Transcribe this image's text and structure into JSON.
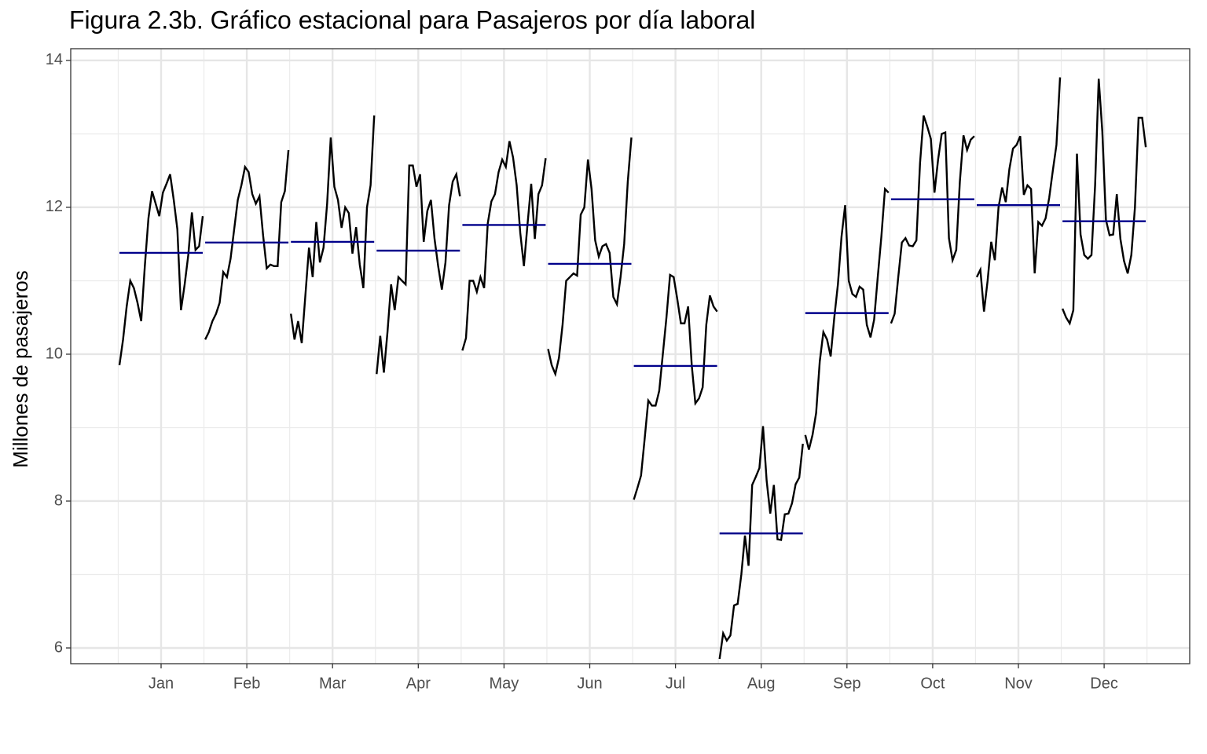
{
  "chart_data": {
    "type": "seasonal_subseries",
    "title": "Figura 2.3b. Gráfico estacional para Pasajeros por día laboral",
    "y_label": "Millones de pasajeros",
    "categories": [
      "Jan",
      "Feb",
      "Mar",
      "Apr",
      "May",
      "Jun",
      "Jul",
      "Aug",
      "Sep",
      "Oct",
      "Nov",
      "Dec"
    ],
    "subseries": [
      [
        9.85,
        10.2,
        10.65,
        11.0,
        10.9,
        10.7,
        10.45,
        11.2,
        11.85,
        12.22,
        12.05,
        11.88,
        12.2,
        12.32,
        12.45,
        12.1,
        11.7,
        10.6,
        10.95,
        11.35,
        11.93,
        11.42,
        11.47,
        11.88
      ],
      [
        10.2,
        10.3,
        10.45,
        10.55,
        10.7,
        11.12,
        11.05,
        11.3,
        11.7,
        12.1,
        12.3,
        12.55,
        12.48,
        12.18,
        12.05,
        12.15,
        11.62,
        11.17,
        11.22,
        11.2,
        11.2,
        12.07,
        12.22,
        12.78
      ],
      [
        10.55,
        10.2,
        10.45,
        10.15,
        10.8,
        11.45,
        11.05,
        11.8,
        11.25,
        11.45,
        12.05,
        12.95,
        12.28,
        12.1,
        11.72,
        12.0,
        11.92,
        11.37,
        11.73,
        11.22,
        10.9,
        12.0,
        12.3,
        13.25
      ],
      [
        9.73,
        10.25,
        9.75,
        10.3,
        10.95,
        10.6,
        11.05,
        11.0,
        10.95,
        12.57,
        12.57,
        12.28,
        12.45,
        11.53,
        11.95,
        12.1,
        11.57,
        11.2,
        10.88,
        11.25,
        12.03,
        12.35,
        12.45,
        12.15
      ],
      [
        10.05,
        10.22,
        11.0,
        11.0,
        10.85,
        11.05,
        10.9,
        11.78,
        12.08,
        12.18,
        12.48,
        12.65,
        12.55,
        12.9,
        12.68,
        12.3,
        11.65,
        11.2,
        11.78,
        12.32,
        11.57,
        12.18,
        12.3,
        12.67
      ],
      [
        10.07,
        9.85,
        9.73,
        9.95,
        10.4,
        11.0,
        11.05,
        11.1,
        11.07,
        11.9,
        12.0,
        12.65,
        12.25,
        11.55,
        11.33,
        11.47,
        11.5,
        11.38,
        10.78,
        10.68,
        11.05,
        11.5,
        12.35,
        12.95
      ],
      [
        8.02,
        8.18,
        8.35,
        8.85,
        9.37,
        9.3,
        9.3,
        9.5,
        10.0,
        10.5,
        11.08,
        11.05,
        10.75,
        10.42,
        10.42,
        10.65,
        9.85,
        9.33,
        9.4,
        9.55,
        10.4,
        10.8,
        10.65,
        10.58
      ],
      [
        5.85,
        6.2,
        6.1,
        6.17,
        6.58,
        6.6,
        7.0,
        7.53,
        7.12,
        8.22,
        8.33,
        8.45,
        9.02,
        8.28,
        7.83,
        8.22,
        7.48,
        7.47,
        7.82,
        7.83,
        7.97,
        8.23,
        8.32,
        8.78
      ],
      [
        8.9,
        8.7,
        8.9,
        9.2,
        9.9,
        10.3,
        10.2,
        9.97,
        10.5,
        10.95,
        11.6,
        12.03,
        11.0,
        10.82,
        10.78,
        10.92,
        10.88,
        10.4,
        10.23,
        10.47,
        11.05,
        11.6,
        12.25,
        12.2
      ],
      [
        10.42,
        10.55,
        11.05,
        11.52,
        11.58,
        11.48,
        11.47,
        11.55,
        12.6,
        13.25,
        13.1,
        12.93,
        12.2,
        12.65,
        13.0,
        13.02,
        11.58,
        11.28,
        11.42,
        12.35,
        12.98,
        12.78,
        12.92,
        12.97
      ],
      [
        11.05,
        11.15,
        10.58,
        11.0,
        11.53,
        11.28,
        12.0,
        12.27,
        12.07,
        12.52,
        12.8,
        12.85,
        12.97,
        12.17,
        12.3,
        12.25,
        11.1,
        11.8,
        11.75,
        11.85,
        12.13,
        12.5,
        12.85,
        13.77
      ],
      [
        10.62,
        10.5,
        10.42,
        10.6,
        12.73,
        11.63,
        11.35,
        11.3,
        11.35,
        12.3,
        13.75,
        13.03,
        11.83,
        11.62,
        11.63,
        12.18,
        11.57,
        11.27,
        11.1,
        11.35,
        12.0,
        13.22,
        13.22,
        12.82
      ]
    ],
    "means": [
      11.38,
      11.52,
      11.53,
      11.41,
      11.76,
      11.23,
      9.84,
      7.56,
      10.56,
      12.11,
      12.03,
      11.81
    ],
    "line_color": "#000000",
    "mean_color": "#00008b",
    "ylim": [
      5.786,
      14.16
    ],
    "yticks": [
      6,
      8,
      10,
      12,
      14
    ],
    "y_minor_grid": [
      7,
      9,
      11,
      13
    ],
    "grid": true
  }
}
